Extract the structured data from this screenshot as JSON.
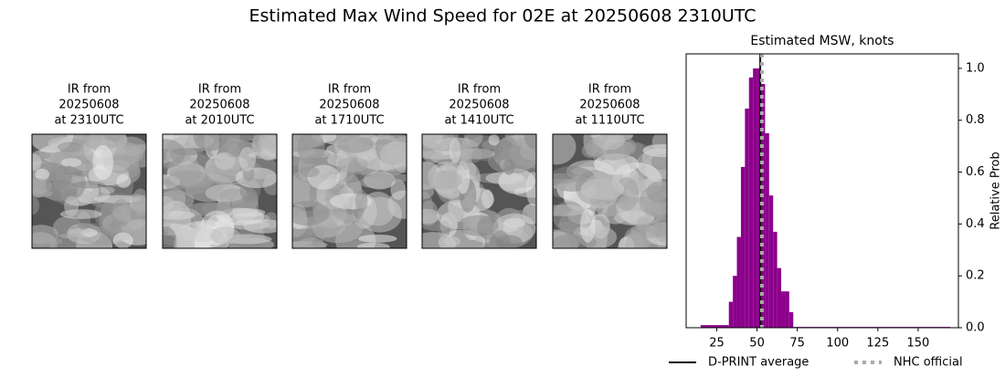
{
  "title": "Estimated Max Wind Speed for 02E at 20250608 2310UTC",
  "images": [
    {
      "title": [
        "IR from",
        "20250608",
        "at 2310UTC"
      ]
    },
    {
      "title": [
        "IR from",
        "20250608",
        "at 2010UTC"
      ]
    },
    {
      "title": [
        "IR from",
        "20250608",
        "at 1710UTC"
      ]
    },
    {
      "title": [
        "IR from",
        "20250608",
        "at 1410UTC"
      ]
    },
    {
      "title": [
        "IR from",
        "20250608",
        "at 1110UTC"
      ]
    }
  ],
  "chart_data": {
    "type": "histogram",
    "title": "Estimated MSW, knots",
    "y_label": "Relative Prob",
    "bins": [
      15,
      32.5,
      35,
      37.5,
      40,
      42.5,
      45,
      47.5,
      50,
      52.5,
      55,
      57.5,
      60,
      62.5,
      65,
      67.5,
      70,
      72.5,
      170
    ],
    "values": [
      0.01,
      0.1,
      0.2,
      0.35,
      0.62,
      0.845,
      0.965,
      1.0,
      1.0,
      0.94,
      0.75,
      0.51,
      0.37,
      0.23,
      0.14,
      0.14,
      0.06,
      0.003
    ],
    "color": "#8b008b",
    "xlim": [
      6,
      175
    ],
    "ylim": [
      0,
      1.056
    ],
    "xticks": [
      25,
      50,
      75,
      100,
      125,
      150
    ],
    "yticks": [
      {
        "value": 0,
        "label": "0.0"
      },
      {
        "value": 0.2,
        "label": "0.2"
      },
      {
        "value": 0.4,
        "label": "0.4"
      },
      {
        "value": 0.6,
        "label": "0.6"
      },
      {
        "value": 0.8,
        "label": "0.8"
      },
      {
        "value": 1.0,
        "label": "1.0"
      }
    ],
    "y_axis_side": "right",
    "lines": [
      {
        "name": "D-PRINT average",
        "value": 52,
        "color": "#000000",
        "style": "solid"
      },
      {
        "name": "NHC official",
        "value": 53,
        "color": "#aaaaaa",
        "style": "dotted"
      }
    ]
  }
}
